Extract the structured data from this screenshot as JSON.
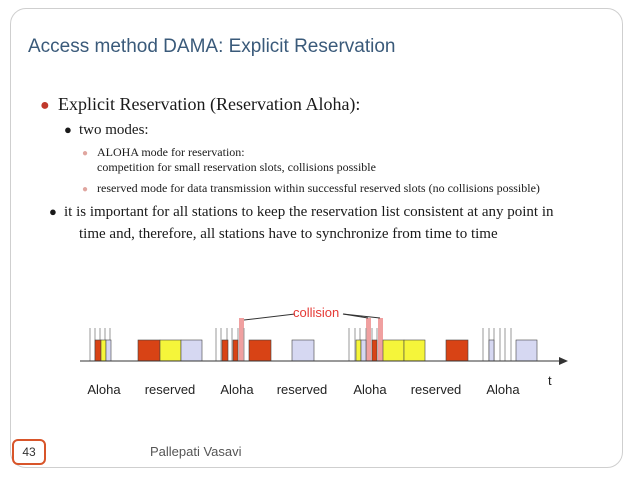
{
  "title": "Access method DAMA: Explicit Reservation",
  "bullets": {
    "main": "Explicit Reservation (Reservation Aloha):",
    "modes": "two modes:",
    "aloha_line1": "ALOHA mode for reservation:",
    "aloha_line2": "competition for small reservation slots, collisions possible",
    "reserved_mode": "reserved mode for data transmission within successful reserved slots (no collisions possible)",
    "important_line1": "it is important for all stations to keep the reservation list consistent at any point in",
    "important_line2": "time and, therefore, all stations have to synchronize from time to time"
  },
  "diagram": {
    "collision_label": "collision",
    "time_label": "t",
    "phase_labels": [
      "Aloha",
      "reserved",
      "Aloha",
      "reserved",
      "Aloha",
      "reserved",
      "Aloha"
    ]
  },
  "colors": {
    "title": "#3a5a7a",
    "bullet_main": "#c0392b",
    "bullet_sub": "#e0a6a0",
    "slot_red": "#d84315",
    "slot_yellow": "#f5f53a",
    "slot_lavender": "#d6d8f2",
    "collision_marker": "#f0a0a0",
    "collision_text": "#e53935"
  },
  "footer": {
    "author": "Pallepati Vasavi",
    "page_number": "43"
  }
}
